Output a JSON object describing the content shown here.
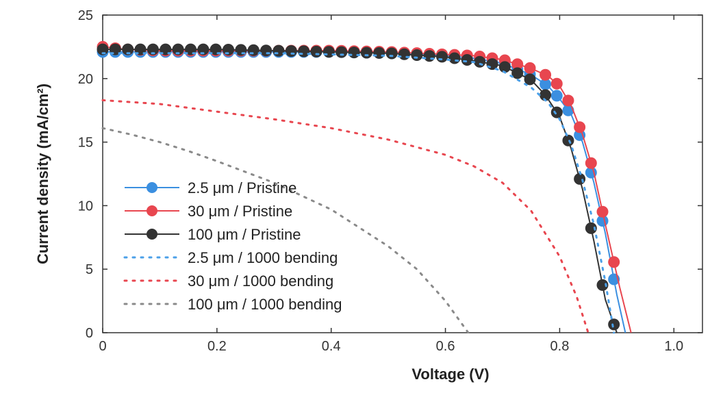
{
  "chart_data": {
    "type": "line",
    "title": "",
    "xlabel": "Voltage (V)",
    "ylabel": "Current density (mA/cm²)",
    "xlim": [
      0,
      1.05
    ],
    "ylim": [
      0,
      25
    ],
    "xticks": [
      0,
      0.2,
      0.4,
      0.6,
      0.8,
      1.0
    ],
    "xtick_labels": [
      "0",
      "0.2",
      "0.4",
      "0.6",
      "0.8",
      "1.0"
    ],
    "yticks": [
      0,
      5,
      10,
      15,
      20,
      25
    ],
    "ytick_labels": [
      "0",
      "5",
      "10",
      "15",
      "20",
      "25"
    ],
    "grid": false,
    "legend_position": "left",
    "series": [
      {
        "name": "2.5 μm / Pristine",
        "color": "#3b8fe0",
        "style": "solid-markers",
        "points": [
          [
            0,
            22.1
          ],
          [
            0.04,
            22.1
          ],
          [
            0.1,
            22.1
          ],
          [
            0.2,
            22.1
          ],
          [
            0.3,
            22.1
          ],
          [
            0.4,
            22.1
          ],
          [
            0.5,
            22.0
          ],
          [
            0.6,
            21.8
          ],
          [
            0.65,
            21.6
          ],
          [
            0.7,
            21.2
          ],
          [
            0.75,
            20.3
          ],
          [
            0.78,
            19.4
          ],
          [
            0.8,
            18.4
          ],
          [
            0.82,
            17.2
          ],
          [
            0.84,
            15.0
          ],
          [
            0.86,
            11.8
          ],
          [
            0.88,
            7.8
          ],
          [
            0.9,
            3.0
          ],
          [
            0.915,
            0
          ]
        ]
      },
      {
        "name": "30 μm / Pristine",
        "color": "#e8464f",
        "style": "solid-markers",
        "points": [
          [
            0,
            22.5
          ],
          [
            0.04,
            22.3
          ],
          [
            0.1,
            22.2
          ],
          [
            0.2,
            22.2
          ],
          [
            0.3,
            22.2
          ],
          [
            0.4,
            22.2
          ],
          [
            0.5,
            22.1
          ],
          [
            0.6,
            21.9
          ],
          [
            0.65,
            21.8
          ],
          [
            0.7,
            21.5
          ],
          [
            0.75,
            20.8
          ],
          [
            0.78,
            20.2
          ],
          [
            0.8,
            19.4
          ],
          [
            0.82,
            17.9
          ],
          [
            0.84,
            15.6
          ],
          [
            0.86,
            12.6
          ],
          [
            0.88,
            8.5
          ],
          [
            0.905,
            3.6
          ],
          [
            0.925,
            0
          ]
        ]
      },
      {
        "name": "100 μm / Pristine",
        "color": "#333333",
        "style": "solid-markers",
        "points": [
          [
            0,
            22.3
          ],
          [
            0.04,
            22.3
          ],
          [
            0.1,
            22.3
          ],
          [
            0.2,
            22.3
          ],
          [
            0.3,
            22.2
          ],
          [
            0.4,
            22.1
          ],
          [
            0.5,
            22.0
          ],
          [
            0.6,
            21.7
          ],
          [
            0.65,
            21.4
          ],
          [
            0.7,
            21.0
          ],
          [
            0.75,
            19.9
          ],
          [
            0.775,
            18.7
          ],
          [
            0.8,
            17.0
          ],
          [
            0.82,
            14.5
          ],
          [
            0.84,
            11.3
          ],
          [
            0.86,
            7.2
          ],
          [
            0.88,
            2.6
          ],
          [
            0.9,
            0
          ]
        ]
      },
      {
        "name": "2.5 μm / 1000 bending",
        "color": "#4a9fe8",
        "style": "dotted",
        "points": [
          [
            0,
            22.0
          ],
          [
            0.1,
            22.0
          ],
          [
            0.2,
            22.0
          ],
          [
            0.3,
            22.0
          ],
          [
            0.4,
            21.9
          ],
          [
            0.5,
            21.8
          ],
          [
            0.6,
            21.5
          ],
          [
            0.65,
            21.3
          ],
          [
            0.7,
            20.6
          ],
          [
            0.75,
            19.3
          ],
          [
            0.78,
            18.1
          ],
          [
            0.8,
            16.8
          ],
          [
            0.82,
            14.8
          ],
          [
            0.84,
            12.0
          ],
          [
            0.86,
            8.5
          ],
          [
            0.88,
            4.0
          ],
          [
            0.895,
            0
          ]
        ]
      },
      {
        "name": "30 μm / 1000 bending",
        "color": "#e8464f",
        "style": "dotted",
        "points": [
          [
            0,
            18.3
          ],
          [
            0.1,
            18.0
          ],
          [
            0.2,
            17.4
          ],
          [
            0.3,
            16.8
          ],
          [
            0.4,
            16.1
          ],
          [
            0.5,
            15.2
          ],
          [
            0.6,
            14.0
          ],
          [
            0.65,
            13.1
          ],
          [
            0.7,
            11.8
          ],
          [
            0.75,
            9.6
          ],
          [
            0.8,
            6.0
          ],
          [
            0.83,
            2.8
          ],
          [
            0.85,
            0
          ]
        ]
      },
      {
        "name": "100 μm / 1000 bending",
        "color": "#8a8a8a",
        "style": "dotted",
        "points": [
          [
            0,
            16.1
          ],
          [
            0.05,
            15.6
          ],
          [
            0.1,
            15.0
          ],
          [
            0.15,
            14.3
          ],
          [
            0.2,
            13.5
          ],
          [
            0.3,
            11.8
          ],
          [
            0.4,
            9.7
          ],
          [
            0.5,
            6.8
          ],
          [
            0.55,
            5.0
          ],
          [
            0.6,
            2.5
          ],
          [
            0.64,
            0
          ]
        ]
      }
    ]
  }
}
